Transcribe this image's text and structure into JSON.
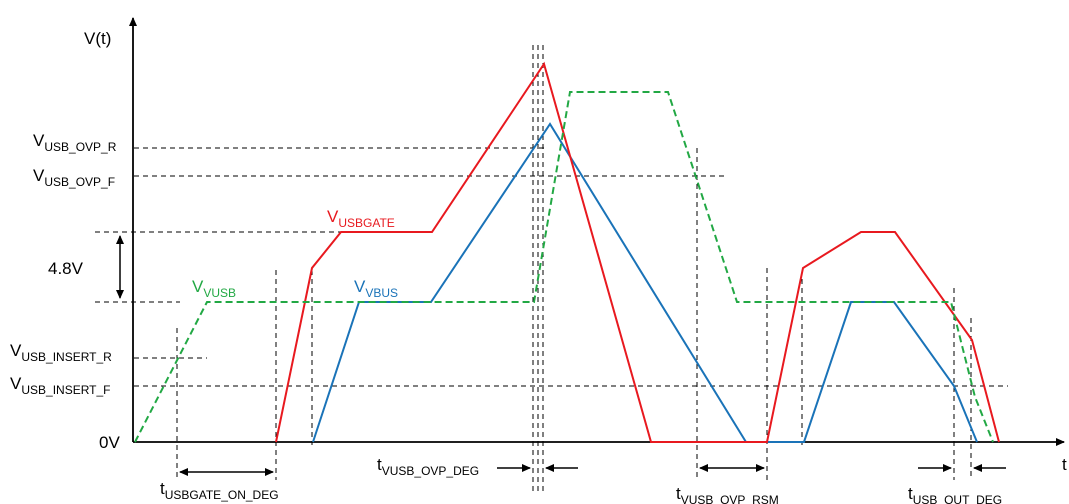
{
  "axes": {
    "y_label": "V(t)",
    "x_label": "t"
  },
  "levels": {
    "ovp_r": {
      "main": "V",
      "sub": "USB_OVP_R"
    },
    "ovp_f": {
      "main": "V",
      "sub": "USB_OVP_F"
    },
    "insert_r": {
      "main": "V",
      "sub": "USB_INSERT_R"
    },
    "insert_f": {
      "main": "V",
      "sub": "USB_INSERT_F"
    },
    "zero": "0V",
    "gate_delta": "4.8V"
  },
  "signals": {
    "usbgate": {
      "main": "V",
      "sub": "USBGATE",
      "color": "#e8191f"
    },
    "vbus": {
      "main": "V",
      "sub": "VBUS",
      "color": "#1a73b8"
    },
    "vusb": {
      "main": "V",
      "sub": "VUSB",
      "color": "#22a844"
    }
  },
  "timings": {
    "gate_on_deg": {
      "main": "t",
      "sub": "USBGATE_ON_DEG"
    },
    "ovp_deg": {
      "main": "t",
      "sub": "VUSB_OVP_DEG"
    },
    "ovp_rsm": {
      "main": "t",
      "sub": "VUSB_OVP_RSM"
    },
    "out_deg": {
      "main": "t",
      "sub": "USB_OUT_DEG"
    }
  }
}
